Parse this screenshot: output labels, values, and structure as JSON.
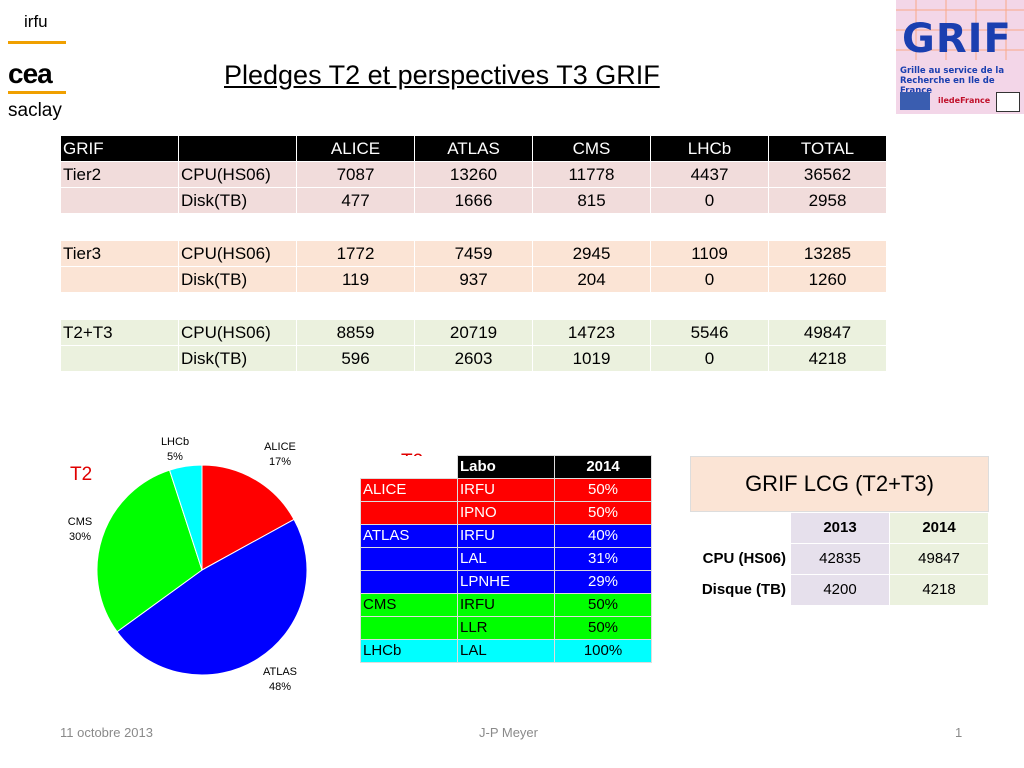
{
  "logos": {
    "left_lines": [
      "irfu",
      "cea",
      "saclay"
    ],
    "right": {
      "name": "GRIF",
      "subtitle_lines": [
        "Grille au service de la",
        "Recherche en Ile de France"
      ],
      "partner": "iledeFrance"
    }
  },
  "title": "Pledges T2 et perspectives T3 GRIF",
  "main_table": {
    "header": [
      "GRIF",
      "",
      "ALICE",
      "ATLAS",
      "CMS",
      "LHCb",
      "TOTAL"
    ],
    "rows": [
      {
        "group": "t2",
        "cells": [
          "Tier2",
          "CPU(HS06)",
          "7087",
          "13260",
          "11778",
          "4437",
          "36562"
        ]
      },
      {
        "group": "t2",
        "cells": [
          "",
          "Disk(TB)",
          "477",
          "1666",
          "815",
          "0",
          "2958"
        ]
      },
      {
        "group": "gap",
        "cells": []
      },
      {
        "group": "t3",
        "cells": [
          "Tier3",
          "CPU(HS06)",
          "1772",
          "7459",
          "2945",
          "1109",
          "13285"
        ]
      },
      {
        "group": "t3",
        "cells": [
          "",
          "Disk(TB)",
          "119",
          "937",
          "204",
          "0",
          "1260"
        ]
      },
      {
        "group": "gap",
        "cells": []
      },
      {
        "group": "tt",
        "cells": [
          "T2+T3",
          "CPU(HS06)",
          "8859",
          "20719",
          "14723",
          "5546",
          "49847"
        ]
      },
      {
        "group": "tt",
        "cells": [
          "",
          "Disk(TB)",
          "596",
          "2603",
          "1019",
          "0",
          "4218"
        ]
      }
    ]
  },
  "pie": {
    "title": "T2",
    "slices": [
      {
        "name": "ALICE",
        "pct": "17%",
        "value": 17,
        "color": "#ff0000"
      },
      {
        "name": "ATLAS",
        "pct": "48%",
        "value": 48,
        "color": "#0000ff"
      },
      {
        "name": "CMS",
        "pct": "30%",
        "value": 30,
        "color": "#00ff00"
      },
      {
        "name": "LHCb",
        "pct": "5%",
        "value": 5,
        "color": "#00ffff"
      }
    ]
  },
  "labo_table": {
    "title": "T2",
    "header": [
      "",
      "Labo",
      "2014"
    ],
    "rows": [
      {
        "exp": "ALICE",
        "labo": "IRFU",
        "pct": "50%",
        "color": "#ff0000"
      },
      {
        "exp": "",
        "labo": "IPNO",
        "pct": "50%",
        "color": "#ff0000"
      },
      {
        "exp": "ATLAS",
        "labo": "IRFU",
        "pct": "40%",
        "color": "#0000ff"
      },
      {
        "exp": "",
        "labo": "LAL",
        "pct": "31%",
        "color": "#0000ff"
      },
      {
        "exp": "",
        "labo": "LPNHE",
        "pct": "29%",
        "color": "#0000ff"
      },
      {
        "exp": "CMS",
        "labo": "IRFU",
        "pct": "50%",
        "color": "#00ff00"
      },
      {
        "exp": "",
        "labo": "LLR",
        "pct": "50%",
        "color": "#00ff00"
      },
      {
        "exp": "LHCb",
        "labo": "LAL",
        "pct": "100%",
        "color": "#00ffff"
      }
    ]
  },
  "lcg": {
    "title": "GRIF LCG (T2+T3)",
    "header": [
      "",
      "2013",
      "2014"
    ],
    "rows": [
      [
        "CPU (HS06)",
        "42835",
        "49847"
      ],
      [
        "Disque (TB)",
        "4200",
        "4218"
      ]
    ]
  },
  "footer": {
    "date": "11 octobre 2013",
    "author": "J-P Meyer",
    "page": "1"
  }
}
